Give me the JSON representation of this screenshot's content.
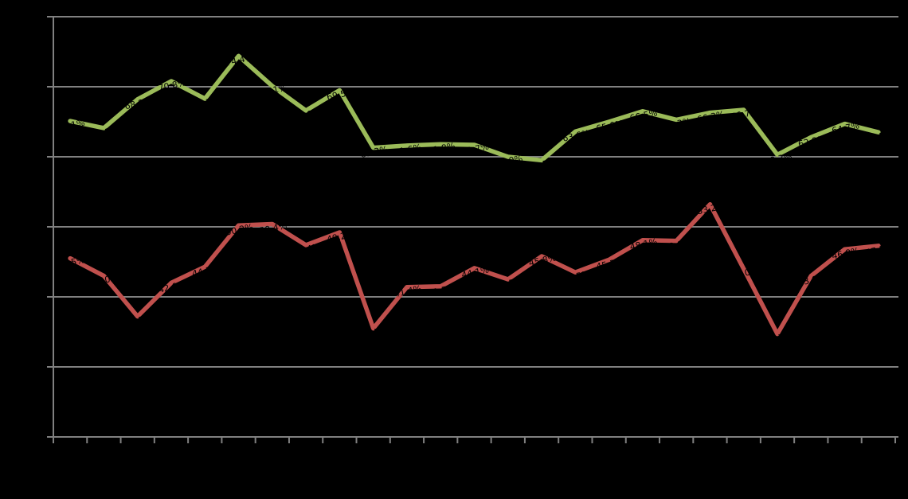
{
  "chart_data": {
    "type": "line",
    "grid_on": true,
    "legend": "none",
    "x_axis": {
      "tick_count": 26,
      "tick_labels_visible": false,
      "points_per_series": 25
    },
    "y_axis": {
      "ylim": [
        20,
        80
      ],
      "gridline_step": 10,
      "unit": "%",
      "tick_labels_visible": false
    },
    "series": [
      {
        "name": "green-upper-series",
        "color": "#9BBB59",
        "values": [
          65.1,
          64.1,
          68.2,
          70.8,
          68.3,
          74.4,
          70.1,
          66.6,
          69.5,
          61.3,
          61.6,
          61.8,
          61.7,
          60.0,
          59.5,
          63.6,
          65.0,
          66.5,
          65.3,
          66.3,
          66.7,
          60.3,
          62.8,
          64.7,
          63.5
        ]
      },
      {
        "name": "red-lower-series",
        "color": "#C0504D",
        "values": [
          45.5,
          43.0,
          37.2,
          42.0,
          44.3,
          50.2,
          50.4,
          47.4,
          49.2,
          35.5,
          41.4,
          41.5,
          44.1,
          42.5,
          45.8,
          43.5,
          45.3,
          48.1,
          48.0,
          53.2,
          44.0,
          34.7,
          43.0,
          46.8,
          47.3
        ]
      }
    ],
    "data_labels": {
      "visible": true,
      "format": "0.0%",
      "color": "#000000",
      "rotation_deg": -12
    },
    "colors": {
      "background": "#000000",
      "gridline": "#808080",
      "axis": "#808080",
      "label_text": "#000000"
    }
  }
}
